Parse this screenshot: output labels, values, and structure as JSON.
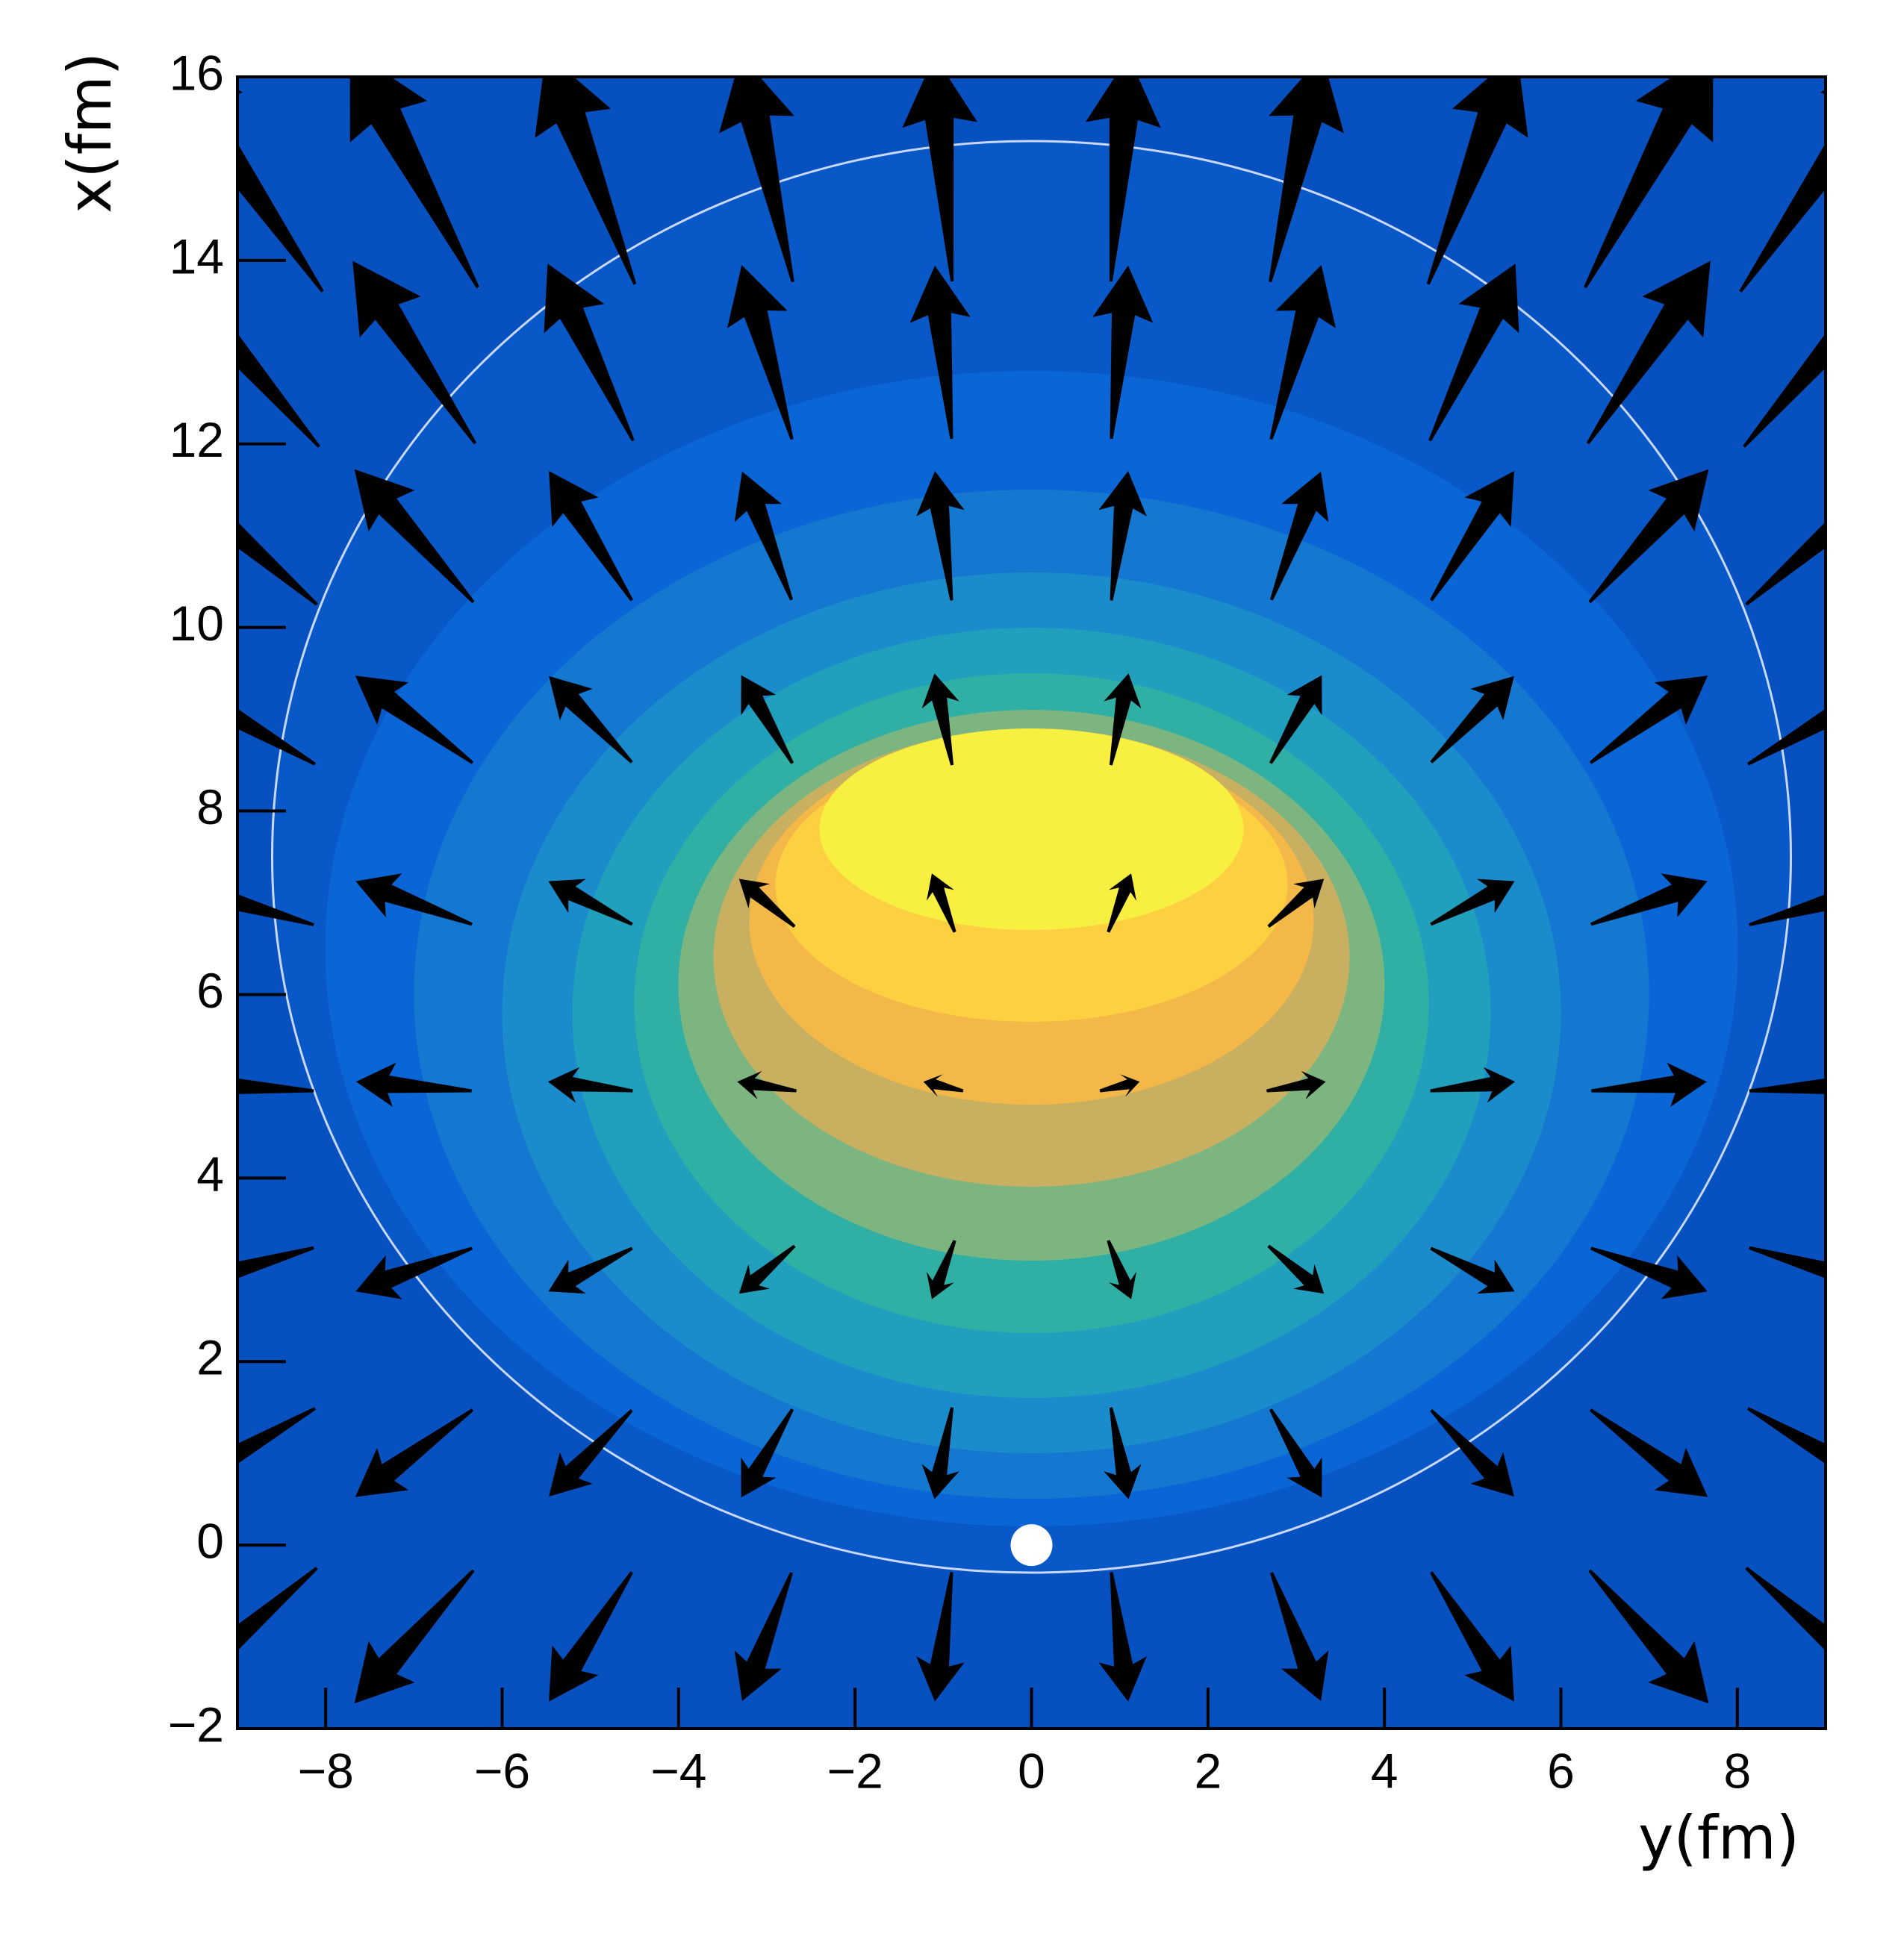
{
  "chart_data": {
    "type": "quiver",
    "xlabel": "y(fm)",
    "ylabel": "x(fm)",
    "xlim": [
      -9,
      9
    ],
    "ylim": [
      -2,
      16
    ],
    "xticks": [
      {
        "value": -8,
        "label": "−8"
      },
      {
        "value": -6,
        "label": "−6"
      },
      {
        "value": -4,
        "label": "−4"
      },
      {
        "value": -2,
        "label": "−2"
      },
      0,
      2,
      4,
      6,
      8
    ],
    "yticks": [
      {
        "value": -2,
        "label": "−2"
      },
      0,
      2,
      4,
      6,
      8,
      10,
      12,
      14,
      16
    ],
    "columns": [
      -9,
      -7,
      -5,
      -3,
      -1,
      1,
      3,
      5,
      7,
      9
    ],
    "rows": [
      -1,
      1,
      3,
      5,
      7,
      9,
      11,
      13,
      15
    ],
    "arrow_color": "#000000",
    "u": [
      [
        -1.8,
        -1.35,
        -0.94,
        -0.56,
        -0.19,
        0.19,
        0.56,
        0.94,
        1.35,
        1.8
      ],
      [
        -1.76,
        -1.33,
        -0.94,
        -0.58,
        -0.2,
        0.2,
        0.58,
        0.94,
        1.33,
        1.76
      ],
      [
        -1.73,
        -1.32,
        -0.95,
        -0.63,
        -0.26,
        0.26,
        0.63,
        0.95,
        1.32,
        1.73
      ],
      [
        -1.73,
        -1.31,
        -0.96,
        -0.67,
        -0.45,
        0.45,
        0.67,
        0.96,
        1.31,
        1.73
      ],
      [
        -1.73,
        -1.32,
        -0.95,
        -0.63,
        -0.26,
        0.26,
        0.63,
        0.95,
        1.32,
        1.73
      ],
      [
        -1.76,
        -1.33,
        -0.94,
        -0.58,
        -0.2,
        0.2,
        0.58,
        0.94,
        1.33,
        1.76
      ],
      [
        -1.8,
        -1.35,
        -0.94,
        -0.56,
        -0.19,
        0.19,
        0.56,
        0.94,
        1.35,
        1.8
      ],
      [
        -1.85,
        -1.39,
        -0.97,
        -0.57,
        -0.19,
        0.19,
        0.57,
        0.97,
        1.39,
        1.85
      ],
      [
        -1.93,
        -1.45,
        -1.01,
        -0.59,
        -0.2,
        0.2,
        0.59,
        1.01,
        1.45,
        1.93
      ]
    ],
    "v": [
      [
        -1.5,
        -1.45,
        -1.41,
        -1.4,
        -1.41,
        -1.41,
        -1.4,
        -1.41,
        -1.45,
        -1.5
      ],
      [
        -0.98,
        -0.95,
        -0.94,
        -0.96,
        -1.0,
        -1.0,
        -0.96,
        -0.94,
        -0.95,
        -0.98
      ],
      [
        -0.48,
        -0.47,
        -0.47,
        -0.52,
        -0.64,
        -0.64,
        -0.52,
        -0.47,
        -0.47,
        -0.48
      ],
      [
        0.1,
        0.1,
        0.1,
        0.1,
        0.1,
        0.1,
        0.1,
        0.1,
        0.1,
        0.1
      ],
      [
        0.48,
        0.47,
        0.47,
        0.52,
        0.64,
        0.64,
        0.52,
        0.47,
        0.47,
        0.48
      ],
      [
        0.98,
        0.95,
        0.94,
        0.96,
        1.0,
        1.0,
        0.96,
        0.94,
        0.95,
        0.98
      ],
      [
        1.5,
        1.45,
        1.41,
        1.4,
        1.41,
        1.41,
        1.4,
        1.41,
        1.45,
        1.5
      ],
      [
        2.06,
        1.99,
        1.93,
        1.9,
        1.89,
        1.89,
        1.9,
        1.93,
        1.99,
        2.06
      ],
      [
        2.68,
        2.59,
        2.52,
        2.47,
        2.46,
        2.46,
        2.47,
        2.52,
        2.59,
        2.68
      ]
    ],
    "marker": {
      "x": 0,
      "y": 0,
      "color": "#ffffff"
    }
  }
}
